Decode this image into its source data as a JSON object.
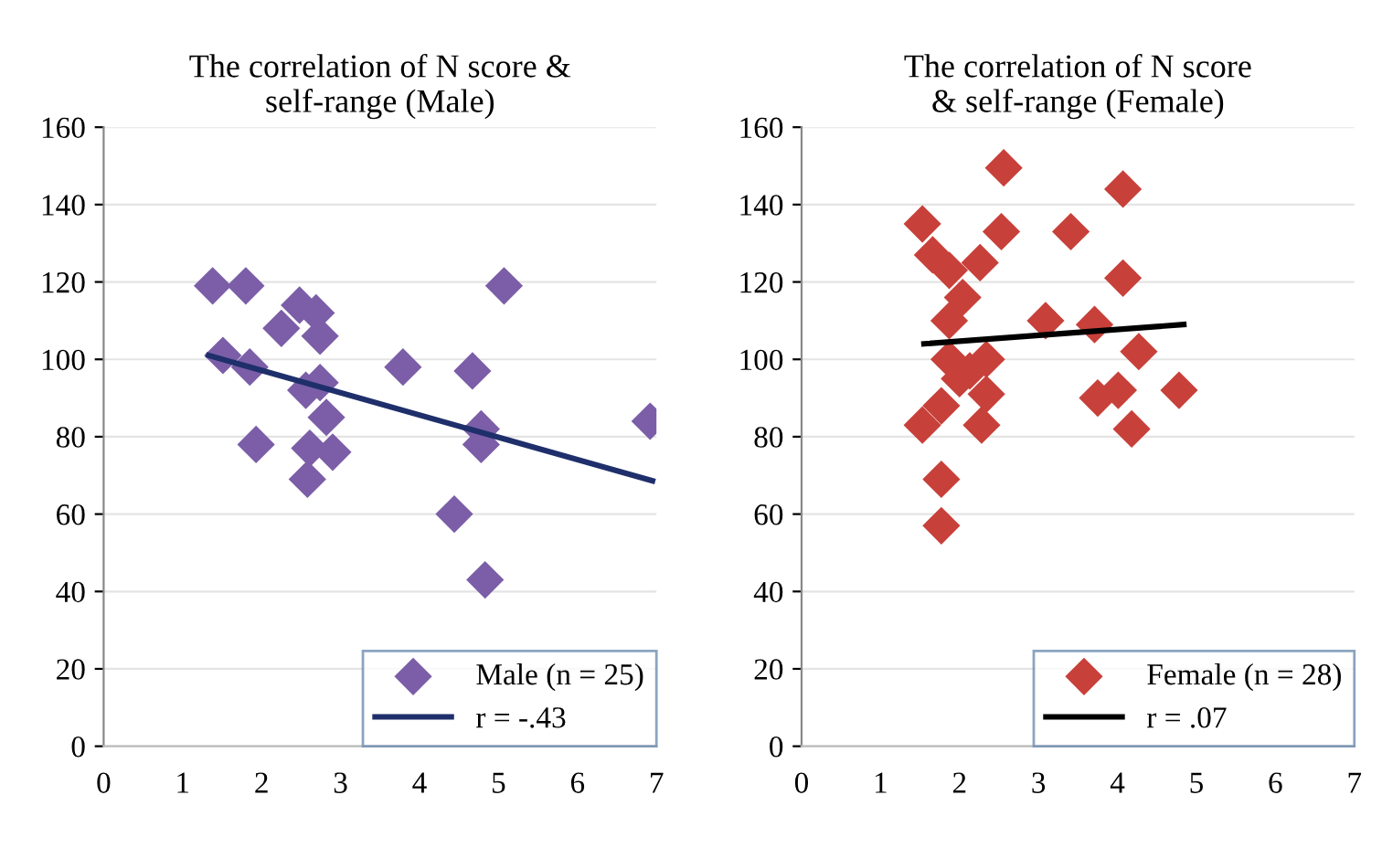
{
  "chart_data": [
    {
      "type": "scatter",
      "title": "The correlation of N score &\nself-range (Male)",
      "marker": "diamond",
      "grid": "y",
      "legend": "bottom right",
      "xlim": [
        0,
        7
      ],
      "xticks": [
        0,
        1,
        2,
        3,
        4,
        5,
        6,
        7
      ],
      "ylim": [
        0,
        160
      ],
      "yticks": [
        0,
        20,
        40,
        60,
        80,
        100,
        120,
        140,
        160
      ],
      "series": [
        {
          "name": "Male (n = 25)",
          "color": "#7b5ea7",
          "x": [
            1.38,
            1.8,
            5.07,
            2.48,
            2.69,
            2.25,
            2.74,
            1.51,
            1.85,
            3.79,
            4.67,
            2.74,
            2.82,
            6.92,
            4.78,
            4.78,
            1.93,
            2.61,
            2.9,
            2.58,
            4.44,
            4.83,
            2.56
          ],
          "values": [
            119,
            119,
            119,
            114,
            112,
            108,
            106,
            101,
            98,
            98,
            97,
            94,
            85,
            84,
            82,
            78,
            78,
            77,
            76,
            69,
            60,
            43,
            92
          ]
        },
        {
          "name": "r = -.43",
          "type": "line",
          "color": "#1f2f6b",
          "marker": "none",
          "x": [
            1.33,
            6.95
          ],
          "values": [
            101,
            68.6
          ]
        }
      ]
    },
    {
      "type": "scatter",
      "title": "The correlation of N score\n& self-range (Female)",
      "marker": "diamond",
      "grid": "y",
      "legend": "bottom right",
      "xlim": [
        0,
        7
      ],
      "xticks": [
        0,
        1,
        2,
        3,
        4,
        5,
        6,
        7
      ],
      "ylim": [
        0,
        160
      ],
      "yticks": [
        0,
        20,
        40,
        60,
        80,
        100,
        120,
        140,
        160
      ],
      "series": [
        {
          "name": "Female (n = 28)",
          "color": "#c8403a",
          "x": [
            2.56,
            4.07,
            1.53,
            2.53,
            3.41,
            1.66,
            2.26,
            1.87,
            4.07,
            2.04,
            1.87,
            3.09,
            3.71,
            4.27,
            1.87,
            2.34,
            2.0,
            4.01,
            3.75,
            4.78,
            2.34,
            1.77,
            1.53,
            2.28,
            4.18,
            1.77,
            1.77,
            2.13
          ],
          "values": [
            149.5,
            144,
            135,
            133,
            133,
            127,
            125,
            123,
            121,
            116,
            110,
            110,
            109,
            102,
            100,
            100,
            95,
            92,
            90,
            92,
            91,
            88,
            83,
            83,
            82,
            69,
            57,
            97
          ]
        },
        {
          "name": "r = .07",
          "type": "line",
          "color": "#000000",
          "marker": "none",
          "x": [
            1.55,
            4.84
          ],
          "values": [
            104,
            109
          ]
        }
      ]
    }
  ]
}
